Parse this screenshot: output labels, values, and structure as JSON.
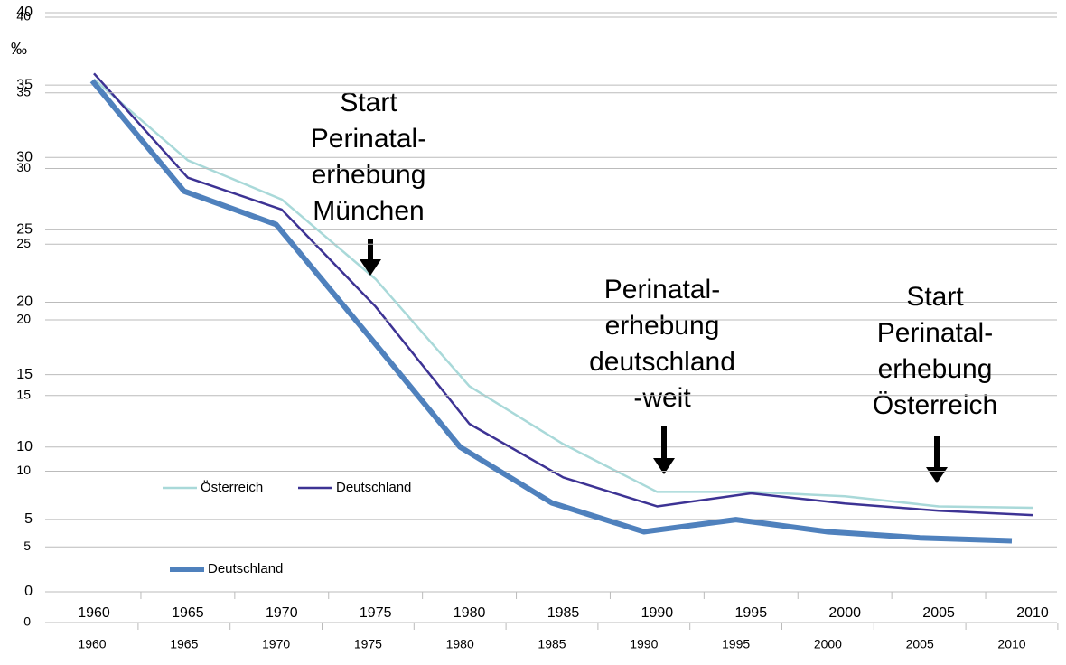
{
  "chart_data": [
    {
      "type": "line",
      "y_label": "‰",
      "categories": [
        "1960",
        "1965",
        "1970",
        "1975",
        "1980",
        "1985",
        "1990",
        "1995",
        "2000",
        "2005",
        "2010"
      ],
      "series": [
        {
          "name": "Österreich",
          "color": "#a9d9d9",
          "values": [
            35.4,
            29.8,
            27.1,
            21.6,
            14.2,
            10.2,
            6.9,
            6.9,
            6.6,
            5.9,
            5.8
          ]
        },
        {
          "name": "Deutschland",
          "color": "#3d3394",
          "values": [
            35.8,
            28.6,
            26.4,
            19.7,
            11.6,
            7.9,
            5.9,
            6.8,
            6.1,
            5.6,
            5.3
          ]
        }
      ],
      "ylim": [
        0,
        40
      ],
      "yticks": [
        0,
        5,
        10,
        15,
        20,
        25,
        30,
        35,
        40
      ],
      "grid": true,
      "annotations": [
        {
          "lines": [
            "Start",
            "Perinatal-",
            "erhebung",
            "München"
          ]
        },
        {
          "lines": [
            "Perinatal-",
            "erhebung",
            "deutschland",
            "-weit"
          ]
        },
        {
          "lines": [
            "Start",
            "Perinatal-",
            "erhebung",
            "Österreich"
          ]
        }
      ]
    },
    {
      "type": "line",
      "categories": [
        "1960",
        "1965",
        "1970",
        "1975",
        "1980",
        "1985",
        "1990",
        "1995",
        "2000",
        "2005",
        "2010"
      ],
      "series": [
        {
          "name": "Deutschland",
          "color": "#4f81bd",
          "values": [
            35.8,
            28.5,
            26.3,
            19.0,
            11.6,
            7.9,
            6.0,
            6.8,
            6.0,
            5.6,
            5.4
          ]
        }
      ],
      "ylim": [
        0,
        40
      ],
      "yticks": [
        0,
        5,
        10,
        15,
        20,
        25,
        30,
        35,
        40
      ],
      "grid": true
    }
  ]
}
